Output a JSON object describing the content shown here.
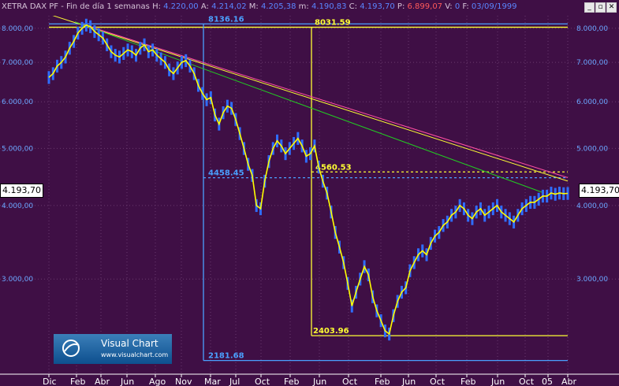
{
  "window": {
    "title_prefix": "XETRA DAX PF - Fin de día 1 semanas",
    "fields": [
      {
        "k": "H:",
        "v": "4.220,00"
      },
      {
        "k": "A:",
        "v": "4.214,02"
      },
      {
        "k": "M:",
        "v": "4.205,38"
      },
      {
        "k": "m:",
        "v": "4.190,83"
      },
      {
        "k": "C:",
        "v": "4.193,70"
      },
      {
        "k": "P:",
        "v": "6.899,07",
        "color": "#ff5a5a"
      },
      {
        "k": "V:",
        "v": "0"
      },
      {
        "k": "F:",
        "v": "03/09/1999"
      }
    ],
    "buttons": [
      {
        "name": "minimize-button",
        "label": "_"
      },
      {
        "name": "restore-button",
        "label": "▫"
      },
      {
        "name": "close-button",
        "label": "✕"
      }
    ]
  },
  "price_box": "4.193,70",
  "logo": {
    "name": "Visual Chart",
    "url": "www.visualchart.com"
  },
  "chart_data": {
    "type": "line",
    "title": "XETRA DAX PF - Fin de día 1 semanas",
    "x_ticks": [
      "Dic",
      "Feb",
      "Abr",
      "Jun",
      "Ago",
      "Nov",
      "Mar",
      "Jul",
      "Oct",
      "Feb",
      "Jun",
      "Oct",
      "Feb",
      "Jun",
      "Oct",
      "Feb",
      "Jun",
      "Oct",
      "05",
      "Abr"
    ],
    "y_ticks_left": [
      "8.000,00",
      "7.000,00",
      "6.000,00",
      "5.000,00",
      "4.000,00",
      "3.000,00"
    ],
    "y_ticks_right": [
      "8.000,00",
      "7.000,00",
      "6.000,00",
      "5.000,00",
      "4.000,00",
      "3.000,00"
    ],
    "y_log_scale": true,
    "ylim": [
      2100,
      8400
    ],
    "last_value": 4193.7,
    "levels": [
      {
        "label": "8136.16",
        "value": 8136.16,
        "color": "#4aa0ff",
        "style": "solid"
      },
      {
        "label": "8031.59",
        "value": 8031.59,
        "color": "#ffff33",
        "style": "solid"
      },
      {
        "label": "4560.53",
        "value": 4560.53,
        "color": "#ffff33",
        "style": "dashed"
      },
      {
        "label": "4458.45",
        "value": 4458.45,
        "color": "#4aa0ff",
        "style": "dashed"
      },
      {
        "label": "2403.96",
        "value": 2403.96,
        "color": "#ffff33",
        "style": "solid"
      },
      {
        "label": "2181.68",
        "value": 2181.68,
        "color": "#4aa0ff",
        "style": "solid"
      }
    ],
    "series": [
      {
        "color": "#ffff00",
        "values": [
          6600,
          6700,
          6900,
          7000,
          7150,
          7400,
          7600,
          7850,
          8000,
          8100,
          8050,
          7900,
          7800,
          7700,
          7500,
          7300,
          7200,
          7150,
          7250,
          7350,
          7300,
          7200,
          7400,
          7500,
          7300,
          7350,
          7200,
          7100,
          7000,
          6800,
          6700,
          6850,
          7000,
          7050,
          6900,
          6700,
          6400,
          6200,
          6050,
          6100,
          5700,
          5500,
          5750,
          5900,
          5850,
          5600,
          5300,
          5000,
          4700,
          4500,
          4000,
          3950,
          4400,
          4750,
          5000,
          5150,
          5050,
          4900,
          5000,
          5100,
          5200,
          5050,
          4850,
          4900,
          5050,
          4650,
          4400,
          4200,
          3900,
          3600,
          3400,
          3200,
          2950,
          2700,
          2850,
          3000,
          3150,
          3050,
          2800,
          2650,
          2550,
          2450,
          2420,
          2600,
          2750,
          2850,
          2900,
          3100,
          3200,
          3300,
          3350,
          3300,
          3450,
          3550,
          3600,
          3700,
          3750,
          3850,
          3900,
          4000,
          3950,
          3850,
          3800,
          3900,
          3950,
          3850,
          3900,
          3950,
          4000,
          3900,
          3850,
          3800,
          3750,
          3850,
          3950,
          4000,
          4050,
          4050,
          4100,
          4150,
          4150,
          4200,
          4180,
          4200,
          4190,
          4193.7
        ]
      }
    ],
    "trendlines": [
      {
        "color": "#ffff33"
      },
      {
        "color": "#ff4fa3"
      },
      {
        "color": "#22cc22"
      }
    ]
  }
}
